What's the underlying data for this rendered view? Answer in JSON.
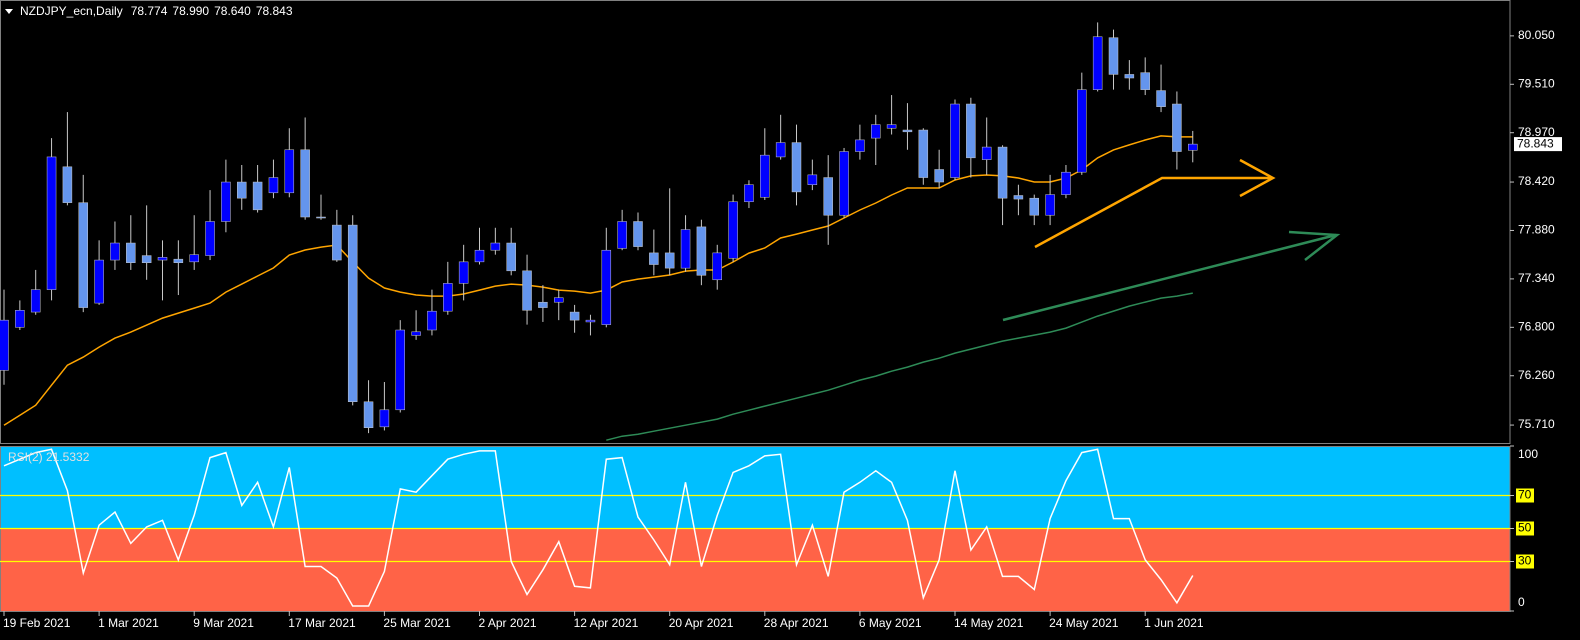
{
  "chart_data": [
    {
      "type": "candlestick",
      "title": "NZDJPY_ecn,Daily",
      "ohlc_labels": [
        "78.774",
        "78.990",
        "78.640",
        "78.843"
      ],
      "categories": [
        "19 Feb 2021",
        null,
        null,
        null,
        null,
        null,
        "1 Mar 2021",
        null,
        null,
        null,
        null,
        null,
        "9 Mar 2021",
        null,
        null,
        null,
        null,
        null,
        "17 Mar 2021",
        null,
        null,
        null,
        null,
        null,
        "25 Mar 2021",
        null,
        null,
        null,
        null,
        null,
        "2 Apr 2021",
        null,
        null,
        null,
        null,
        null,
        "12 Apr 2021",
        null,
        null,
        null,
        null,
        null,
        "20 Apr 2021",
        null,
        null,
        null,
        null,
        null,
        "28 Apr 2021",
        null,
        null,
        null,
        null,
        null,
        "6 May 2021",
        null,
        null,
        null,
        null,
        null,
        "14 May 2021",
        null,
        null,
        null,
        null,
        null,
        "24 May 2021",
        null,
        null,
        null,
        null,
        null,
        "1 Jun 2021",
        null,
        null,
        null
      ],
      "open": [
        76.32,
        76.8,
        76.97,
        77.22,
        78.59,
        78.19,
        77.07,
        77.55,
        77.74,
        77.6,
        77.55,
        77.56,
        77.53,
        77.6,
        77.98,
        78.42,
        78.42,
        78.3,
        78.3,
        78.78,
        78.03,
        77.94,
        77.94,
        75.97,
        75.69,
        75.88,
        76.71,
        76.77,
        76.98,
        77.29,
        77.53,
        77.66,
        77.74,
        77.43,
        77.08,
        77.08,
        76.97,
        76.86,
        76.83,
        77.68,
        77.98,
        77.63,
        77.63,
        77.46,
        77.92,
        77.33,
        77.57,
        78.2,
        78.25,
        78.7,
        78.86,
        78.39,
        78.47,
        78.05,
        78.76,
        78.91,
        79.02,
        79.0,
        79.0,
        78.56,
        78.47,
        79.29,
        78.67,
        78.81,
        78.27,
        78.24,
        78.05,
        78.28,
        78.53,
        79.45,
        80.03,
        79.62,
        79.64,
        79.44,
        79.29,
        78.774
      ],
      "high": [
        77.22,
        77.1,
        77.44,
        78.91,
        79.2,
        78.5,
        77.77,
        77.98,
        78.05,
        78.16,
        77.77,
        77.77,
        78.05,
        78.33,
        78.67,
        78.61,
        78.61,
        78.67,
        79.02,
        79.14,
        78.28,
        78.11,
        78.05,
        76.21,
        76.19,
        76.88,
        76.99,
        77.22,
        77.53,
        77.72,
        77.91,
        77.91,
        77.91,
        77.61,
        77.27,
        77.22,
        77.05,
        76.94,
        77.91,
        78.11,
        78.08,
        77.89,
        78.35,
        78.05,
        78.0,
        77.72,
        78.28,
        78.44,
        79.02,
        79.17,
        79.06,
        78.67,
        78.72,
        78.8,
        79.06,
        79.17,
        79.39,
        79.3,
        79.02,
        78.78,
        79.34,
        79.36,
        79.14,
        78.83,
        78.39,
        78.28,
        78.5,
        78.61,
        79.64,
        80.2,
        80.12,
        79.78,
        79.81,
        79.73,
        79.43,
        78.99
      ],
      "low": [
        76.16,
        76.77,
        76.94,
        77.1,
        78.16,
        76.97,
        77.05,
        77.44,
        77.44,
        77.33,
        77.1,
        77.16,
        77.44,
        77.55,
        77.86,
        78.11,
        78.08,
        78.24,
        78.25,
        78.0,
        78.0,
        77.53,
        75.93,
        75.62,
        75.65,
        75.85,
        76.66,
        76.71,
        76.94,
        77.1,
        77.5,
        77.61,
        77.38,
        76.83,
        76.86,
        76.88,
        76.74,
        76.71,
        76.8,
        77.66,
        77.66,
        77.38,
        77.38,
        77.42,
        77.27,
        77.22,
        77.53,
        78.13,
        78.22,
        78.67,
        78.16,
        78.33,
        77.72,
        78.02,
        78.67,
        78.61,
        78.95,
        78.78,
        78.39,
        78.35,
        78.44,
        78.47,
        78.5,
        77.94,
        78.05,
        77.94,
        77.94,
        78.24,
        78.5,
        79.43,
        79.45,
        79.45,
        79.39,
        79.2,
        78.56,
        78.64
      ],
      "close": [
        76.88,
        76.99,
        77.22,
        78.7,
        78.19,
        77.02,
        77.55,
        77.74,
        77.52,
        77.52,
        77.58,
        77.52,
        77.61,
        77.98,
        78.42,
        78.24,
        78.11,
        78.47,
        78.78,
        78.03,
        78.02,
        77.55,
        75.97,
        75.68,
        75.88,
        76.77,
        76.75,
        76.98,
        77.29,
        77.53,
        77.66,
        77.74,
        77.43,
        76.99,
        77.02,
        77.13,
        76.88,
        76.88,
        77.66,
        77.98,
        77.7,
        77.5,
        77.46,
        77.89,
        77.38,
        77.63,
        78.2,
        78.39,
        78.72,
        78.86,
        78.31,
        78.5,
        78.05,
        78.76,
        78.89,
        79.06,
        79.06,
        78.98,
        78.47,
        78.42,
        79.29,
        78.69,
        78.81,
        78.24,
        78.23,
        78.05,
        78.28,
        78.53,
        79.45,
        80.04,
        79.62,
        79.58,
        79.45,
        79.26,
        78.76,
        78.843
      ],
      "up_color": "#0000ff",
      "down_color": "#6495ed",
      "wick_color": "#c8c8c8",
      "lines": [
        {
          "color": "#ffa500",
          "values": [
            75.709,
            75.82,
            75.932,
            76.155,
            76.378,
            76.468,
            76.579,
            76.68,
            76.747,
            76.825,
            76.903,
            76.959,
            77.014,
            77.07,
            77.193,
            77.282,
            77.372,
            77.461,
            77.606,
            77.662,
            77.695,
            77.718,
            77.528,
            77.349,
            77.238,
            77.193,
            77.16,
            77.148,
            77.148,
            77.171,
            77.215,
            77.26,
            77.282,
            77.271,
            77.249,
            77.215,
            77.204,
            77.182,
            77.215,
            77.305,
            77.338,
            77.36,
            77.383,
            77.427,
            77.439,
            77.439,
            77.528,
            77.628,
            77.684,
            77.796,
            77.84,
            77.885,
            77.93,
            78.019,
            78.108,
            78.186,
            78.276,
            78.354,
            78.354,
            78.354,
            78.443,
            78.488,
            78.499,
            78.488,
            78.465,
            78.421,
            78.421,
            78.465,
            78.555,
            78.689,
            78.778,
            78.834,
            78.889,
            78.934,
            78.923,
            78.923
          ]
        },
        {
          "color": "#2e8b57",
          "values": [
            null,
            null,
            null,
            null,
            null,
            null,
            null,
            null,
            null,
            null,
            null,
            null,
            null,
            null,
            null,
            null,
            null,
            null,
            null,
            null,
            null,
            null,
            null,
            null,
            null,
            null,
            null,
            null,
            null,
            null,
            null,
            null,
            null,
            null,
            null,
            null,
            null,
            null,
            75.541,
            75.586,
            75.608,
            75.642,
            75.675,
            75.709,
            75.742,
            75.776,
            75.831,
            75.876,
            75.921,
            75.965,
            76.01,
            76.055,
            76.099,
            76.155,
            76.211,
            76.256,
            76.311,
            76.356,
            76.412,
            76.456,
            76.512,
            76.557,
            76.602,
            76.646,
            76.68,
            76.713,
            76.747,
            76.791,
            76.858,
            76.925,
            76.981,
            77.037,
            77.081,
            77.126,
            77.148,
            77.182
          ]
        }
      ],
      "ylim": [
        75.51,
        80.45
      ],
      "yticks": [
        {
          "value": 80.05,
          "label": "80.050"
        },
        {
          "value": 79.51,
          "label": "79.510"
        },
        {
          "value": 78.97,
          "label": "78.970"
        },
        {
          "value": 78.42,
          "label": "78.420"
        },
        {
          "value": 77.88,
          "label": "77.880"
        },
        {
          "value": 77.34,
          "label": "77.340"
        },
        {
          "value": 76.8,
          "label": "76.800"
        },
        {
          "value": 76.26,
          "label": "76.260"
        },
        {
          "value": 75.71,
          "label": "75.710"
        }
      ],
      "last_price": {
        "value": 78.843,
        "label": "78.843"
      }
    },
    {
      "type": "line",
      "title": "RSI(2) 21.5332",
      "values": [
        88,
        92,
        96,
        98,
        73,
        23,
        52,
        60,
        41,
        51,
        55,
        31,
        58,
        93,
        96,
        64,
        78,
        51,
        87,
        27,
        27,
        20,
        3,
        3,
        24,
        74,
        72,
        82,
        92,
        95,
        97,
        97,
        30,
        10,
        25,
        42,
        15,
        14,
        92,
        93,
        57,
        43,
        28,
        78,
        27,
        58,
        84,
        88,
        94,
        95,
        28,
        52,
        21,
        72,
        78,
        85,
        78,
        55,
        8,
        31,
        85,
        37,
        51,
        21,
        21,
        13,
        56,
        79,
        96,
        98,
        56,
        56,
        31,
        19,
        5,
        21.5332
      ],
      "color": "#ffffff",
      "ylim": [
        0,
        100
      ],
      "yticks": [
        100,
        70,
        50,
        30,
        0
      ],
      "levels": [
        70,
        50,
        30
      ],
      "level_color": "#ffff00",
      "split": 50,
      "upper_color": "#00bfff",
      "lower_color": "#ff6347"
    }
  ]
}
